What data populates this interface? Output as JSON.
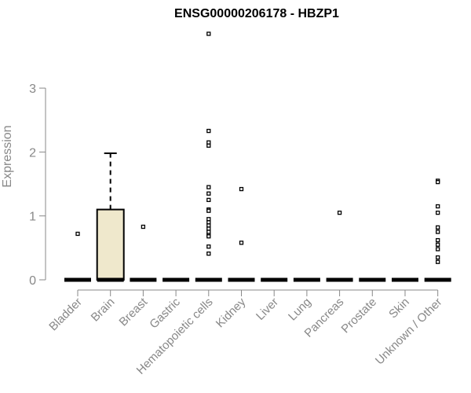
{
  "chart_data": {
    "type": "boxplot",
    "title": "ENSG00000206178 - HBZP1",
    "xlabel": "",
    "ylabel": "Expression",
    "ylim": [
      0,
      4
    ],
    "yticks": [
      "0",
      "1",
      "2",
      "3"
    ],
    "box_fill": "#efe8cc",
    "categories": [
      {
        "name": "Bladder",
        "q1": 0,
        "median": 0,
        "q3": 0,
        "whisker_low": 0,
        "whisker_high": 0,
        "outliers": [
          0.72
        ]
      },
      {
        "name": "Brain",
        "q1": 0,
        "median": 0,
        "q3": 1.1,
        "whisker_low": 0,
        "whisker_high": 1.98,
        "outliers": []
      },
      {
        "name": "Breast",
        "q1": 0,
        "median": 0,
        "q3": 0,
        "whisker_low": 0,
        "whisker_high": 0,
        "outliers": [
          0.83
        ]
      },
      {
        "name": "Gastric",
        "q1": 0,
        "median": 0,
        "q3": 0,
        "whisker_low": 0,
        "whisker_high": 0,
        "outliers": []
      },
      {
        "name": "Hematopoietic cells",
        "q1": 0,
        "median": 0,
        "q3": 0,
        "whisker_low": 0,
        "whisker_high": 0,
        "outliers": [
          3.85,
          2.33,
          2.15,
          2.1,
          1.45,
          1.35,
          1.25,
          1.1,
          1.08,
          0.95,
          0.9,
          0.85,
          0.8,
          0.75,
          0.7,
          0.68,
          0.52,
          0.41
        ]
      },
      {
        "name": "Kidney",
        "q1": 0,
        "median": 0,
        "q3": 0,
        "whisker_low": 0,
        "whisker_high": 0,
        "outliers": [
          1.42,
          0.58
        ]
      },
      {
        "name": "Liver",
        "q1": 0,
        "median": 0,
        "q3": 0,
        "whisker_low": 0,
        "whisker_high": 0,
        "outliers": []
      },
      {
        "name": "Lung",
        "q1": 0,
        "median": 0,
        "q3": 0,
        "whisker_low": 0,
        "whisker_high": 0,
        "outliers": []
      },
      {
        "name": "Pancreas",
        "q1": 0,
        "median": 0,
        "q3": 0,
        "whisker_low": 0,
        "whisker_high": 0,
        "outliers": [
          1.05
        ]
      },
      {
        "name": "Prostate",
        "q1": 0,
        "median": 0,
        "q3": 0,
        "whisker_low": 0,
        "whisker_high": 0,
        "outliers": []
      },
      {
        "name": "Skin",
        "q1": 0,
        "median": 0,
        "q3": 0,
        "whisker_low": 0,
        "whisker_high": 0,
        "outliers": []
      },
      {
        "name": "Unknown / Other",
        "q1": 0,
        "median": 0,
        "q3": 0,
        "whisker_low": 0,
        "whisker_high": 0,
        "outliers": [
          1.55,
          1.53,
          1.15,
          1.05,
          0.82,
          0.75,
          0.62,
          0.55,
          0.48,
          0.35,
          0.28
        ]
      }
    ]
  }
}
